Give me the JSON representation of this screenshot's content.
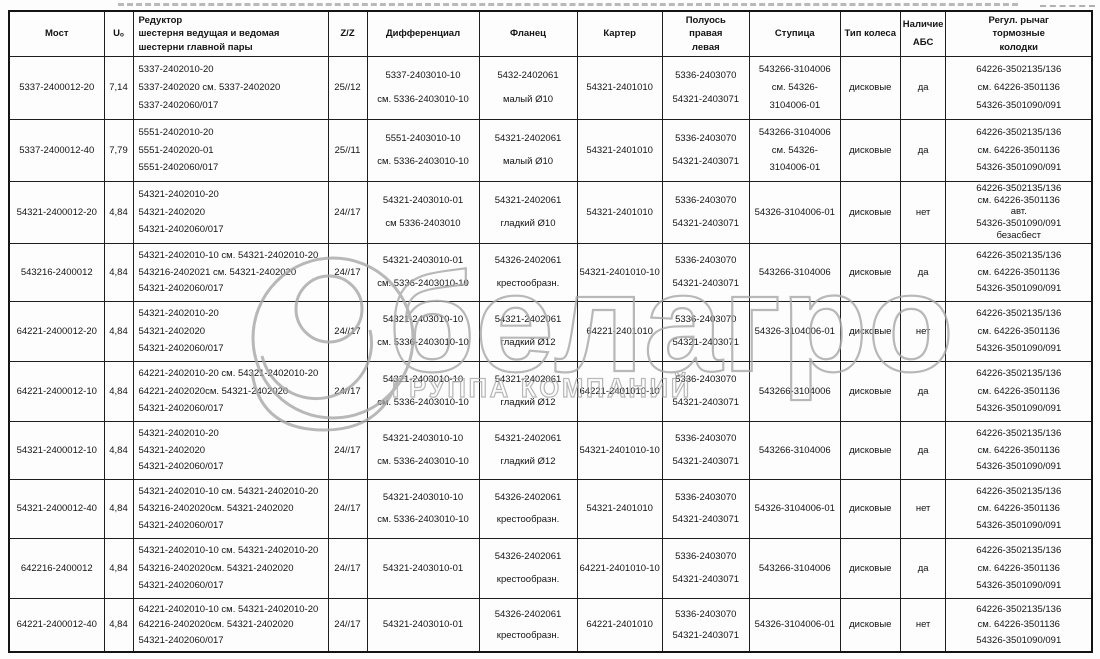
{
  "watermark": {
    "brand": "белагро",
    "tagline": "ГРУППА КОМПАНИЙ",
    "color": "#a8a8a8"
  },
  "table": {
    "columns": [
      {
        "key": "most",
        "label_lines": [
          "Мост"
        ]
      },
      {
        "key": "u",
        "label_lines": [
          "Uₒ"
        ]
      },
      {
        "key": "reduktor",
        "label_lines": [
          "Редуктор",
          "шестерня ведущая и ведомая",
          "шестерни главной пары"
        ]
      },
      {
        "key": "zz",
        "label_lines": [
          "Z/Z"
        ]
      },
      {
        "key": "diff",
        "label_lines": [
          "Дифференциал"
        ]
      },
      {
        "key": "flange",
        "label_lines": [
          "Фланец"
        ]
      },
      {
        "key": "karter",
        "label_lines": [
          "Картер"
        ]
      },
      {
        "key": "axle",
        "label_lines": [
          "Полуось",
          "правая",
          "левая"
        ]
      },
      {
        "key": "hub",
        "label_lines": [
          "Ступица"
        ]
      },
      {
        "key": "wheel",
        "label_lines": [
          "Тип колеса"
        ]
      },
      {
        "key": "abs",
        "label_lines": [
          "Наличие",
          "АБС"
        ]
      },
      {
        "key": "lever",
        "label_lines": [
          "Регул. рычаг",
          "тормозные",
          "колодки"
        ]
      }
    ],
    "rows": [
      {
        "most": "5337-2400012-20",
        "u": "7,14",
        "reduktor": [
          "5337-2402010-20",
          "5337-2402020 см. 5337-2402020",
          "5337-2402060/017"
        ],
        "zz": "25//12",
        "diff": [
          "5337-2403010-10",
          "см. 5336-2403010-10"
        ],
        "flange": [
          "5432-2402061",
          "малый Ø10"
        ],
        "karter": [
          "54321-2401010"
        ],
        "axle": [
          "5336-2403070",
          "54321-2403071"
        ],
        "hub": [
          "543266-3104006",
          "см. 54326-",
          "3104006-01"
        ],
        "wheel": "дисковые",
        "abs": "да",
        "lever": [
          "64226-3502135/136",
          "см. 64226-3501136",
          "54326-3501090/091"
        ]
      },
      {
        "most": "5337-2400012-40",
        "u": "7,79",
        "reduktor": [
          "5551-2402010-20",
          "5551-2402020-01",
          "5551-2402060/017"
        ],
        "zz": "25//11",
        "diff": [
          "5551-2403010-10",
          "см. 5336-2403010-10"
        ],
        "flange": [
          "54321-2402061",
          "малый Ø10"
        ],
        "karter": [
          "54321-2401010"
        ],
        "axle": [
          "5336-2403070",
          "54321-2403071"
        ],
        "hub": [
          "543266-3104006",
          "см. 54326-",
          "3104006-01"
        ],
        "wheel": "дисковые",
        "abs": "да",
        "lever": [
          "64226-3502135/136",
          "см. 64226-3501136",
          "54326-3501090/091"
        ]
      },
      {
        "most": "54321-2400012-20",
        "u": "4,84",
        "reduktor": [
          "54321-2402010-20",
          "54321-2402020",
          "54321-2402060/017"
        ],
        "zz": "24//17",
        "diff": [
          "54321-2403010-01",
          "см 5336-2403010"
        ],
        "flange": [
          "54321-2402061",
          "гладкий Ø10"
        ],
        "karter": [
          "54321-2401010"
        ],
        "axle": [
          "5336-2403070",
          "54321-2403071"
        ],
        "hub": [
          "54326-3104006-01"
        ],
        "wheel": "дисковые",
        "abs": "нет",
        "lever": [
          "64226-3502135/136",
          "см. 64226-3501136",
          "авт.",
          "54326-3501090/091",
          "безасбест"
        ]
      },
      {
        "most": "543216-2400012",
        "u": "4,84",
        "reduktor": [
          "54321-2402010-10 см. 54321-2402010-20",
          "543216-2402021 см. 54321-2402020",
          "54321-2402060/017"
        ],
        "zz": "24//17",
        "diff": [
          "54321-2403010-01",
          "см. 5336-2403010-10"
        ],
        "flange": [
          "54326-2402061",
          "крестообразн."
        ],
        "karter": [
          "54321-2401010-10"
        ],
        "axle": [
          "5336-2403070",
          "54321-2403071"
        ],
        "hub": [
          "543266-3104006"
        ],
        "wheel": "дисковые",
        "abs": "да",
        "lever": [
          "64226-3502135/136",
          "см. 64226-3501136",
          "54326-3501090/091"
        ]
      },
      {
        "most": "64221-2400012-20",
        "u": "4,84",
        "reduktor": [
          "54321-2402010-20",
          "54321-2402020",
          "54321-2402060/017"
        ],
        "zz": "24//17",
        "diff": [
          "54321-2403010-10",
          "см. 5336-2403010-10"
        ],
        "flange": [
          "54321-2402061",
          "гладкий Ø12"
        ],
        "karter": [
          "64221-2401010"
        ],
        "axle": [
          "5336-2403070",
          "54321-2403071"
        ],
        "hub": [
          "54326-3104006-01"
        ],
        "wheel": "дисковые",
        "abs": "нет",
        "lever": [
          "64226-3502135/136",
          "см. 64226-3501136",
          "54326-3501090/091"
        ]
      },
      {
        "most": "64221-2400012-10",
        "u": "4,84",
        "reduktor": [
          "64221-2402010-20 см. 54321-2402010-20",
          "64221-2402020см. 54321-2402020",
          "54321-2402060/017"
        ],
        "zz": "24//17",
        "diff": [
          "54321-2403010-10",
          "см. 5336-2403010-10"
        ],
        "flange": [
          "54321-2402061",
          "гладкий Ø12"
        ],
        "karter": [
          "64221-2401010-10"
        ],
        "axle": [
          "5336-2403070",
          "54321-2403071"
        ],
        "hub": [
          "543266-3104006"
        ],
        "wheel": "дисковые",
        "abs": "да",
        "lever": [
          "64226-3502135/136",
          "см. 64226-3501136",
          "54326-3501090/091"
        ]
      },
      {
        "most": "54321-2400012-10",
        "u": "4,84",
        "reduktor": [
          "54321-2402010-20",
          "54321-2402020",
          "54321-2402060/017"
        ],
        "zz": "24//17",
        "diff": [
          "54321-2403010-10",
          "см. 5336-2403010-10"
        ],
        "flange": [
          "54321-2402061",
          "гладкий Ø12"
        ],
        "karter": [
          "54321-2401010-10"
        ],
        "axle": [
          "5336-2403070",
          "54321-2403071"
        ],
        "hub": [
          "543266-3104006"
        ],
        "wheel": "дисковые",
        "abs": "да",
        "lever": [
          "64226-3502135/136",
          "см. 64226-3501136",
          "54326-3501090/091"
        ]
      },
      {
        "most": "54321-2400012-40",
        "u": "4,84",
        "reduktor": [
          "54321-2402010-10 см. 54321-2402010-20",
          "543216-2402020см. 54321-2402020",
          "54321-2402060/017"
        ],
        "zz": "24//17",
        "diff": [
          "54321-2403010-10",
          "см. 5336-2403010-10"
        ],
        "flange": [
          "54326-2402061",
          "крестообразн."
        ],
        "karter": [
          "54321-2401010"
        ],
        "axle": [
          "5336-2403070",
          "54321-2403071"
        ],
        "hub": [
          "54326-3104006-01"
        ],
        "wheel": "дисковые",
        "abs": "нет",
        "lever": [
          "64226-3502135/136",
          "см. 64226-3501136",
          "54326-3501090/091"
        ]
      },
      {
        "most": "642216-2400012",
        "u": "4,84",
        "reduktor": [
          "54321-2402010-10 см. 54321-2402010-20",
          "543216-2402020см. 54321-2402020",
          "54321-2402060/017"
        ],
        "zz": "24//17",
        "diff": [
          "54321-2403010-01"
        ],
        "flange": [
          "54326-2402061",
          "крестообразн."
        ],
        "karter": [
          "64221-2401010-10"
        ],
        "axle": [
          "5336-2403070",
          "54321-2403071"
        ],
        "hub": [
          "543266-3104006"
        ],
        "wheel": "дисковые",
        "abs": "да",
        "lever": [
          "64226-3502135/136",
          "см. 64226-3501136",
          "54326-3501090/091"
        ]
      },
      {
        "most": "64221-2400012-40",
        "u": "4,84",
        "reduktor": [
          "64221-2402010-10 см. 54321-2402010-20",
          "642216-2402020см. 54321-2402020",
          "54321-2402060/017"
        ],
        "zz": "24//17",
        "diff": [
          "54321-2403010-01"
        ],
        "flange": [
          "54326-2402061",
          "крестообразн."
        ],
        "karter": [
          "64221-2401010"
        ],
        "axle": [
          "5336-2403070",
          "54321-2403071"
        ],
        "hub": [
          "54326-3104006-01"
        ],
        "wheel": "дисковые",
        "abs": "нет",
        "lever": [
          "64226-3502135/136",
          "см. 64226-3501136",
          "54326-3501090/091"
        ]
      }
    ]
  }
}
